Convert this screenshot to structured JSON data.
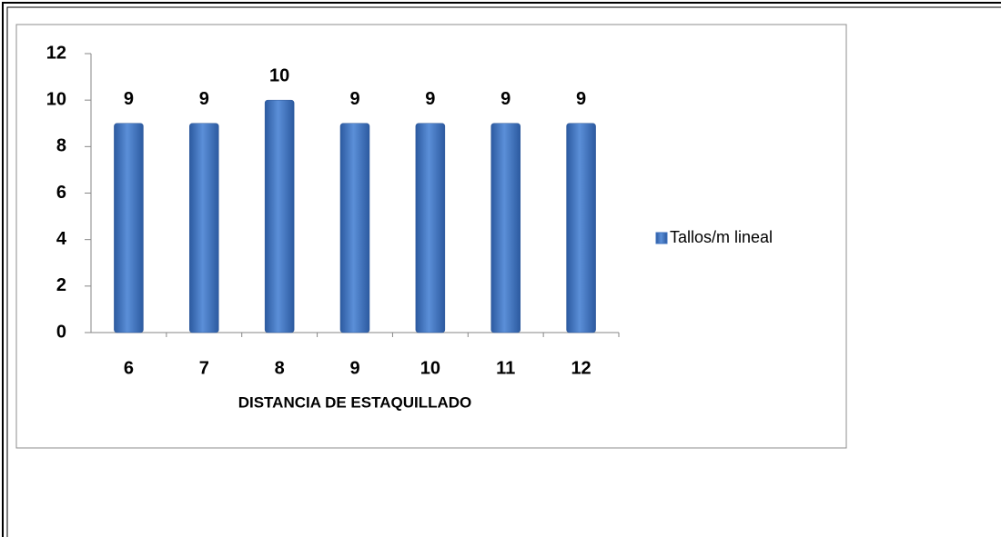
{
  "chart_data": {
    "type": "bar",
    "x_label": "DISTANCIA DE ESTAQUILLADO",
    "categories": [
      "6",
      "7",
      "8",
      "9",
      "10",
      "11",
      "12"
    ],
    "series": [
      {
        "name": "Tallos/m lineal",
        "color": "#3f72bf",
        "values": [
          9,
          9,
          10,
          9,
          9,
          9,
          9
        ]
      }
    ],
    "ylim": [
      0,
      12
    ],
    "yticks": [
      0,
      2,
      4,
      6,
      8,
      10,
      12
    ],
    "legend": "right"
  }
}
